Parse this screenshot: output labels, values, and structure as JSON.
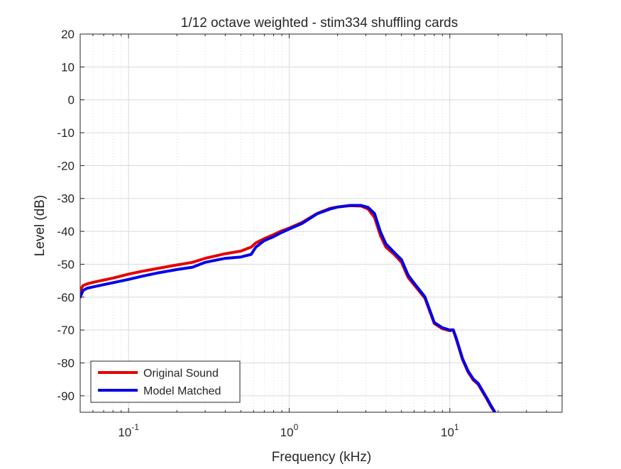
{
  "chart_data": {
    "type": "line",
    "title": "1/12 octave weighted - stim334 shuffling cards",
    "xlabel": "Frequency (kHz)",
    "ylabel": "Level (dB)",
    "xscale": "log",
    "xlim": [
      0.05,
      50
    ],
    "ylim": [
      -95,
      20
    ],
    "grid": true,
    "minor_grid": true,
    "legend_position": "bottom-left",
    "x_ticks": [
      {
        "value": 0.1,
        "base": "10",
        "exp": "-1"
      },
      {
        "value": 1,
        "base": "10",
        "exp": "0"
      },
      {
        "value": 10,
        "base": "10",
        "exp": "1"
      }
    ],
    "y_ticks": [
      20,
      10,
      0,
      -10,
      -20,
      -30,
      -40,
      -50,
      -60,
      -70,
      -80,
      -90
    ],
    "series": [
      {
        "name": "Original Sound",
        "color": "#e60000",
        "x": [
          0.05,
          0.052,
          0.055,
          0.06,
          0.07,
          0.08,
          0.1,
          0.12,
          0.15,
          0.2,
          0.25,
          0.3,
          0.4,
          0.5,
          0.58,
          0.62,
          0.7,
          0.8,
          0.9,
          1.0,
          1.2,
          1.5,
          1.8,
          2.0,
          2.4,
          2.8,
          3.1,
          3.4,
          3.7,
          4.0,
          4.5,
          5.0,
          5.5,
          6.0,
          7.0,
          8.0,
          9.0,
          10.0,
          10.5,
          11.0,
          12.0,
          13.0,
          14.0,
          15.0,
          16.0,
          17.0,
          18.0,
          19.0
        ],
        "y": [
          -58,
          -56.5,
          -56,
          -55.5,
          -54.8,
          -54.2,
          -53,
          -52.2,
          -51.3,
          -50.2,
          -49.4,
          -48.2,
          -46.8,
          -46,
          -44.8,
          -43.5,
          -42.2,
          -41,
          -39.8,
          -39,
          -37.3,
          -34.5,
          -33,
          -32.6,
          -32.2,
          -32.3,
          -33.2,
          -35.8,
          -41.3,
          -44.8,
          -47,
          -49.4,
          -54,
          -56.3,
          -60.3,
          -68,
          -69.6,
          -70.2,
          -70,
          -73,
          -79,
          -82.8,
          -85.2,
          -86.5,
          -88.8,
          -91,
          -93.2,
          -95
        ]
      },
      {
        "name": "Model Matched",
        "color": "#0000e6",
        "x": [
          0.05,
          0.052,
          0.055,
          0.06,
          0.07,
          0.08,
          0.1,
          0.12,
          0.15,
          0.2,
          0.25,
          0.3,
          0.4,
          0.5,
          0.58,
          0.62,
          0.7,
          0.8,
          0.9,
          1.0,
          1.2,
          1.5,
          1.8,
          2.0,
          2.4,
          2.8,
          3.1,
          3.4,
          3.7,
          4.0,
          4.5,
          5.0,
          5.5,
          6.0,
          7.0,
          8.0,
          9.0,
          10.0,
          10.5,
          11.0,
          12.0,
          13.0,
          14.0,
          15.0,
          16.0,
          17.0,
          18.0,
          19.0
        ],
        "y": [
          -60,
          -58,
          -57.3,
          -56.9,
          -56.2,
          -55.6,
          -54.6,
          -53.7,
          -52.7,
          -51.6,
          -50.9,
          -49.4,
          -48.2,
          -47.8,
          -47,
          -44.8,
          -42.8,
          -41.6,
          -40.3,
          -39.3,
          -37.6,
          -34.6,
          -33.2,
          -32.6,
          -32.1,
          -32.1,
          -32.7,
          -34.6,
          -40.2,
          -43.8,
          -46.4,
          -48.6,
          -53.3,
          -55.8,
          -59.9,
          -67.7,
          -69.3,
          -70,
          -69.9,
          -72.7,
          -78.7,
          -82.5,
          -84.9,
          -86.2,
          -88.5,
          -90.7,
          -92.9,
          -94.8
        ]
      }
    ]
  }
}
